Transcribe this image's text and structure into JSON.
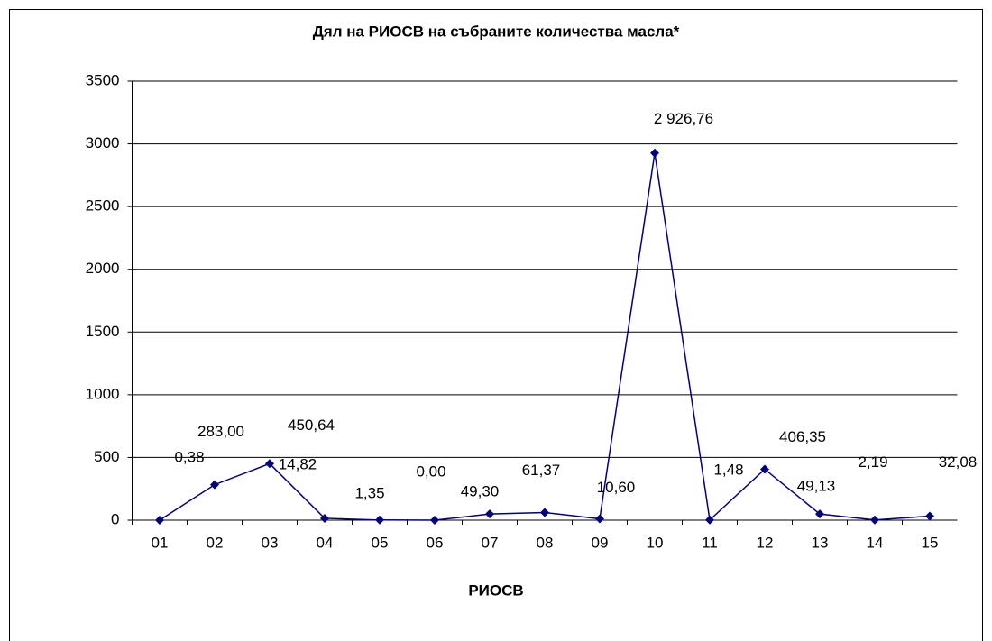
{
  "chart_data": {
    "type": "line",
    "title": "Дял на РИОСВ на събраните количества масла*",
    "x_label": "РИОСВ",
    "categories": [
      "01",
      "02",
      "03",
      "04",
      "05",
      "06",
      "07",
      "08",
      "09",
      "10",
      "11",
      "12",
      "13",
      "14",
      "15"
    ],
    "series": [
      {
        "name": null,
        "color": "#000080",
        "values": [
          0.38,
          283.0,
          450.64,
          14.82,
          1.35,
          0.0,
          49.3,
          61.37,
          10.6,
          2926.76,
          1.48,
          406.35,
          49.13,
          2.19,
          32.08
        ],
        "value_labels": [
          "0,38",
          "283,00",
          "450,64",
          "14,82",
          "1,35",
          "0,00",
          "49,30",
          "61,37",
          "10,60",
          "2 926,76",
          "1,48",
          "406,35",
          "49,13",
          "2,19",
          "32,08"
        ]
      }
    ],
    "ylim": [
      0,
      3500
    ],
    "yticks": [
      0,
      500,
      1000,
      1500,
      2000,
      2500,
      3000,
      3500
    ],
    "grid": true
  }
}
